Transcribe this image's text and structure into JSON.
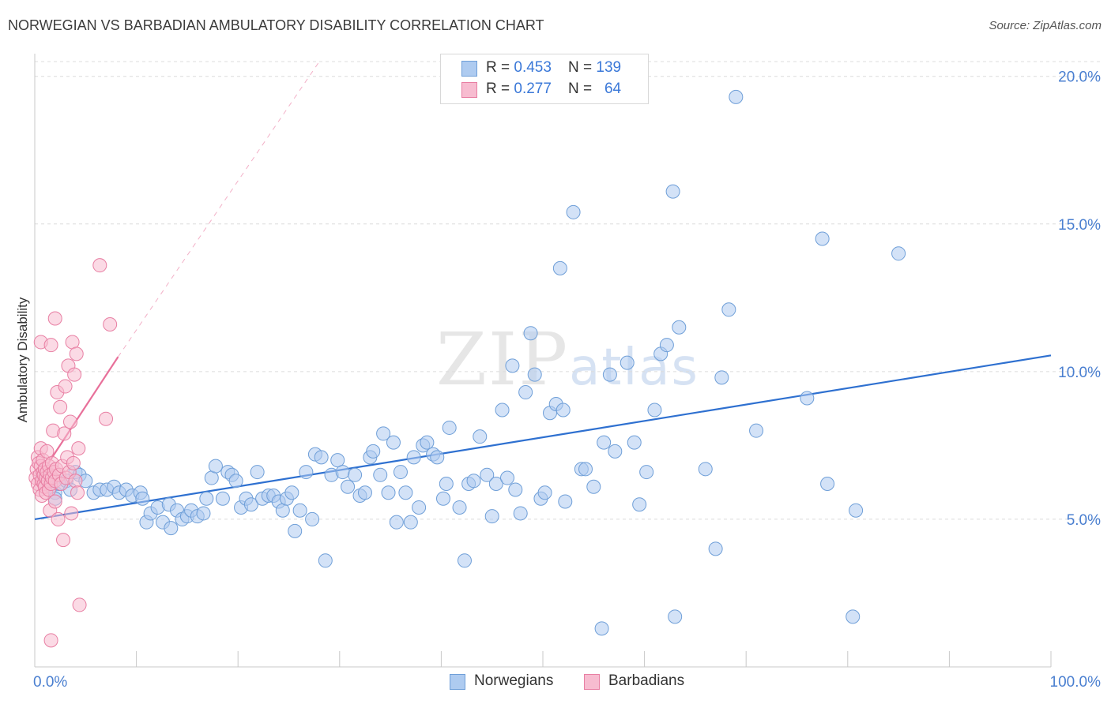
{
  "title": "NORWEGIAN VS BARBADIAN AMBULATORY DISABILITY CORRELATION CHART",
  "source": "Source: ZipAtlas.com",
  "watermark": {
    "zip": "ZIP",
    "atlas": "atlas"
  },
  "legend": {
    "rows": [
      {
        "r_label": "R = ",
        "r_value": "0.453",
        "n_label": "N = ",
        "n_value": "139",
        "color": "#aecbf0",
        "border": "#6f9fd8"
      },
      {
        "r_label": "R = ",
        "r_value": "0.277",
        "n_label": "N = ",
        "n_value": "64",
        "color": "#f7bcd0",
        "border": "#e87fa3"
      }
    ]
  },
  "bottom_legend": [
    {
      "label": "Norwegians",
      "color": "#aecbf0",
      "border": "#6f9fd8"
    },
    {
      "label": "Barbadians",
      "color": "#f7bcd0",
      "border": "#e87fa3"
    }
  ],
  "chart_data": {
    "type": "scatter",
    "title": "NORWEGIAN VS BARBADIAN AMBULATORY DISABILITY CORRELATION CHART",
    "xlabel": "",
    "ylabel": "Ambulatory Disability",
    "xlim": [
      0,
      100
    ],
    "ylim": [
      0,
      20.5
    ],
    "x_tick_labels": [
      {
        "value": 0,
        "label": "0.0%"
      },
      {
        "value": 100,
        "label": "100.0%"
      }
    ],
    "y_tick_labels": [
      {
        "value": 5,
        "label": "5.0%"
      },
      {
        "value": 10,
        "label": "10.0%"
      },
      {
        "value": 15,
        "label": "15.0%"
      },
      {
        "value": 20,
        "label": "20.0%"
      }
    ],
    "grid": true,
    "series": [
      {
        "name": "Norwegians",
        "color": "#aecbf0",
        "stroke": "#6f9fd8",
        "trend": {
          "x0": 0,
          "y0": 5.0,
          "x1": 100,
          "y1": 10.55,
          "color": "#2e70d0"
        },
        "points": [
          [
            0.8,
            6.5
          ],
          [
            1.2,
            6.3
          ],
          [
            1.6,
            6.1
          ],
          [
            2.0,
            5.9
          ],
          [
            2.4,
            6.2
          ],
          [
            2.0,
            5.7
          ],
          [
            3.1,
            6.3
          ],
          [
            3.5,
            6.0
          ],
          [
            4.0,
            6.6
          ],
          [
            4.4,
            6.5
          ],
          [
            5.0,
            6.3
          ],
          [
            5.8,
            5.9
          ],
          [
            6.4,
            6.0
          ],
          [
            7.1,
            6.0
          ],
          [
            7.8,
            6.1
          ],
          [
            8.3,
            5.9
          ],
          [
            9.0,
            6.0
          ],
          [
            9.6,
            5.8
          ],
          [
            10.4,
            5.9
          ],
          [
            10.6,
            5.7
          ],
          [
            11.0,
            4.9
          ],
          [
            11.4,
            5.2
          ],
          [
            12.1,
            5.4
          ],
          [
            12.6,
            4.9
          ],
          [
            13.2,
            5.5
          ],
          [
            13.4,
            4.7
          ],
          [
            14.0,
            5.3
          ],
          [
            14.5,
            5.0
          ],
          [
            15.0,
            5.1
          ],
          [
            15.4,
            5.3
          ],
          [
            16.0,
            5.1
          ],
          [
            16.6,
            5.2
          ],
          [
            16.9,
            5.7
          ],
          [
            17.4,
            6.4
          ],
          [
            17.8,
            6.8
          ],
          [
            18.5,
            5.7
          ],
          [
            19.0,
            6.6
          ],
          [
            19.4,
            6.5
          ],
          [
            19.8,
            6.3
          ],
          [
            20.3,
            5.4
          ],
          [
            20.8,
            5.7
          ],
          [
            21.3,
            5.5
          ],
          [
            21.9,
            6.6
          ],
          [
            22.4,
            5.7
          ],
          [
            23.0,
            5.8
          ],
          [
            23.5,
            5.8
          ],
          [
            24.0,
            5.6
          ],
          [
            24.4,
            5.3
          ],
          [
            24.8,
            5.7
          ],
          [
            25.3,
            5.9
          ],
          [
            25.6,
            4.6
          ],
          [
            26.1,
            5.3
          ],
          [
            26.7,
            6.6
          ],
          [
            27.3,
            5.0
          ],
          [
            27.6,
            7.2
          ],
          [
            28.2,
            7.1
          ],
          [
            28.6,
            3.6
          ],
          [
            29.2,
            6.5
          ],
          [
            29.8,
            7.0
          ],
          [
            30.3,
            6.6
          ],
          [
            30.8,
            6.1
          ],
          [
            31.5,
            6.5
          ],
          [
            32.0,
            5.8
          ],
          [
            32.5,
            5.9
          ],
          [
            33.0,
            7.1
          ],
          [
            33.3,
            7.3
          ],
          [
            34.0,
            6.5
          ],
          [
            34.3,
            7.9
          ],
          [
            34.8,
            5.9
          ],
          [
            35.3,
            7.6
          ],
          [
            35.6,
            4.9
          ],
          [
            36.0,
            6.6
          ],
          [
            36.5,
            5.9
          ],
          [
            37.0,
            4.9
          ],
          [
            37.3,
            7.1
          ],
          [
            37.8,
            5.4
          ],
          [
            38.2,
            7.5
          ],
          [
            38.6,
            7.6
          ],
          [
            39.2,
            7.2
          ],
          [
            39.6,
            7.1
          ],
          [
            40.2,
            5.7
          ],
          [
            40.5,
            6.2
          ],
          [
            40.8,
            8.1
          ],
          [
            41.8,
            5.4
          ],
          [
            42.3,
            3.6
          ],
          [
            42.7,
            6.2
          ],
          [
            43.2,
            6.3
          ],
          [
            43.8,
            7.8
          ],
          [
            44.5,
            6.5
          ],
          [
            45.0,
            5.1
          ],
          [
            45.4,
            6.2
          ],
          [
            46.0,
            8.7
          ],
          [
            46.5,
            6.4
          ],
          [
            47.0,
            10.2
          ],
          [
            47.3,
            6.0
          ],
          [
            47.8,
            5.2
          ],
          [
            48.3,
            9.3
          ],
          [
            48.8,
            11.3
          ],
          [
            49.2,
            9.9
          ],
          [
            49.8,
            5.7
          ],
          [
            50.2,
            5.9
          ],
          [
            50.7,
            8.6
          ],
          [
            51.3,
            8.9
          ],
          [
            52.0,
            8.7
          ],
          [
            52.2,
            5.6
          ],
          [
            51.7,
            13.5
          ],
          [
            53.0,
            15.4
          ],
          [
            53.8,
            6.7
          ],
          [
            54.2,
            6.7
          ],
          [
            55.0,
            6.1
          ],
          [
            55.8,
            1.3
          ],
          [
            56.0,
            7.6
          ],
          [
            56.6,
            9.9
          ],
          [
            57.1,
            7.3
          ],
          [
            58.3,
            10.3
          ],
          [
            59.0,
            7.6
          ],
          [
            59.5,
            5.5
          ],
          [
            60.2,
            6.6
          ],
          [
            61.0,
            8.7
          ],
          [
            61.6,
            10.6
          ],
          [
            62.2,
            10.9
          ],
          [
            62.8,
            16.1
          ],
          [
            63.4,
            11.5
          ],
          [
            63.0,
            1.7
          ],
          [
            66.0,
            6.7
          ],
          [
            67.0,
            4.0
          ],
          [
            67.6,
            9.8
          ],
          [
            68.3,
            12.1
          ],
          [
            69.0,
            19.3
          ],
          [
            71.0,
            8.0
          ],
          [
            76.0,
            9.1
          ],
          [
            77.5,
            14.5
          ],
          [
            78.0,
            6.2
          ],
          [
            80.5,
            1.7
          ],
          [
            80.8,
            5.3
          ],
          [
            85.0,
            14.0
          ]
        ]
      },
      {
        "name": "Barbadians",
        "color": "#f7bcd0",
        "stroke": "#e87fa3",
        "trend": {
          "x0": 0,
          "y0": 6.2,
          "x1": 8.2,
          "y1": 10.5,
          "color": "#e8709a",
          "dash_to": {
            "x": 28,
            "y": 20.5
          }
        },
        "points": [
          [
            0.1,
            6.4
          ],
          [
            0.2,
            6.7
          ],
          [
            0.3,
            7.1
          ],
          [
            0.3,
            6.2
          ],
          [
            0.4,
            6.9
          ],
          [
            0.5,
            6.0
          ],
          [
            0.5,
            6.5
          ],
          [
            0.6,
            6.8
          ],
          [
            0.6,
            7.4
          ],
          [
            0.7,
            6.3
          ],
          [
            0.7,
            5.8
          ],
          [
            0.8,
            6.6
          ],
          [
            0.8,
            7.0
          ],
          [
            0.9,
            6.2
          ],
          [
            0.9,
            6.5
          ],
          [
            1.0,
            6.1
          ],
          [
            1.0,
            6.7
          ],
          [
            1.1,
            6.4
          ],
          [
            1.1,
            5.9
          ],
          [
            1.2,
            6.6
          ],
          [
            1.2,
            7.3
          ],
          [
            1.3,
            6.3
          ],
          [
            1.4,
            6.8
          ],
          [
            1.4,
            6.0
          ],
          [
            1.5,
            6.5
          ],
          [
            1.5,
            5.3
          ],
          [
            1.6,
            6.2
          ],
          [
            1.7,
            6.9
          ],
          [
            1.7,
            6.4
          ],
          [
            1.8,
            8.0
          ],
          [
            1.9,
            6.6
          ],
          [
            2.0,
            6.3
          ],
          [
            2.0,
            5.6
          ],
          [
            2.1,
            6.7
          ],
          [
            2.2,
            9.3
          ],
          [
            2.3,
            5.0
          ],
          [
            2.4,
            6.5
          ],
          [
            2.5,
            8.8
          ],
          [
            2.6,
            6.2
          ],
          [
            2.7,
            6.8
          ],
          [
            2.8,
            4.3
          ],
          [
            2.9,
            7.9
          ],
          [
            3.0,
            9.5
          ],
          [
            3.1,
            6.4
          ],
          [
            3.2,
            7.1
          ],
          [
            3.3,
            10.2
          ],
          [
            3.4,
            6.6
          ],
          [
            3.5,
            8.3
          ],
          [
            3.6,
            5.2
          ],
          [
            3.7,
            11.0
          ],
          [
            3.8,
            6.9
          ],
          [
            3.9,
            9.9
          ],
          [
            4.0,
            6.3
          ],
          [
            4.1,
            10.6
          ],
          [
            4.2,
            5.9
          ],
          [
            4.3,
            7.4
          ],
          [
            0.6,
            11.0
          ],
          [
            1.6,
            10.9
          ],
          [
            2.0,
            11.8
          ],
          [
            6.4,
            13.6
          ],
          [
            4.4,
            2.1
          ],
          [
            1.6,
            0.9
          ],
          [
            7.0,
            8.4
          ],
          [
            7.4,
            11.6
          ]
        ]
      }
    ]
  }
}
